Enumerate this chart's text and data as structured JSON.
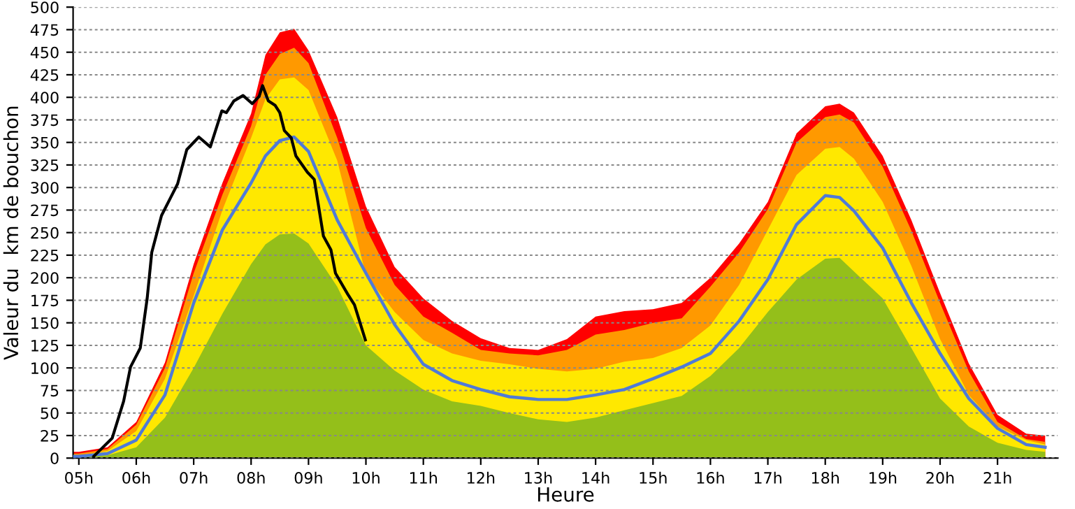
{
  "chart_data": {
    "type": "area",
    "xlabel": "Heure",
    "ylabel": "Valeur du  km de bouchon",
    "x": [
      4.9,
      5,
      5.5,
      6,
      6.5,
      7,
      7.5,
      8,
      8.25,
      8.5,
      8.75,
      9,
      9.5,
      10,
      10.5,
      11,
      11.5,
      12,
      12.5,
      13,
      13.5,
      14,
      14.5,
      15,
      15.5,
      16,
      16.5,
      17,
      17.5,
      18,
      18.25,
      18.5,
      19,
      19.5,
      20,
      20.5,
      21,
      21.5,
      21.83
    ],
    "series": [
      {
        "color": "#ff0000",
        "values": [
          7,
          7,
          12,
          40,
          106,
          215,
          305,
          382,
          447,
          472,
          476,
          452,
          378,
          279,
          212,
          177,
          152,
          133,
          122,
          120,
          132,
          157,
          163,
          165,
          172,
          200,
          238,
          284,
          360,
          390,
          393,
          383,
          335,
          264,
          183,
          105,
          48,
          27,
          25
        ]
      },
      {
        "color": "#ff9900",
        "values": [
          5,
          5,
          10,
          37,
          100,
          205,
          292,
          368,
          425,
          448,
          455,
          438,
          355,
          255,
          192,
          157,
          139,
          120,
          116,
          114,
          120,
          137,
          142,
          150,
          155,
          190,
          228,
          276,
          350,
          378,
          381,
          372,
          323,
          252,
          172,
          96,
          40,
          21,
          18
        ]
      },
      {
        "color": "#ffe800",
        "values": [
          3,
          3,
          8,
          30,
          88,
          180,
          275,
          355,
          398,
          420,
          422,
          408,
          330,
          203,
          162,
          131,
          116,
          108,
          104,
          99,
          96,
          99,
          107,
          111,
          122,
          147,
          192,
          253,
          314,
          343,
          345,
          332,
          284,
          213,
          132,
          70,
          35,
          20,
          15
        ]
      },
      {
        "color": "#94bf1a",
        "values": [
          2,
          2,
          3,
          12,
          45,
          100,
          160,
          215,
          237,
          248,
          249,
          238,
          190,
          125,
          97,
          76,
          63,
          58,
          50,
          43,
          40,
          45,
          53,
          61,
          69,
          91,
          122,
          162,
          198,
          221,
          222,
          207,
          177,
          122,
          66,
          35,
          17,
          9,
          7
        ]
      },
      {
        "type": "line",
        "color": "#4f7ad8",
        "values": [
          2,
          2,
          5,
          20,
          70,
          172,
          253,
          305,
          335,
          352,
          356,
          340,
          264,
          205,
          148,
          104,
          86,
          76,
          68,
          65,
          65,
          70,
          76,
          88,
          101,
          116,
          152,
          198,
          259,
          291,
          289,
          274,
          233,
          172,
          116,
          66,
          33,
          15,
          12
        ]
      },
      {
        "type": "line",
        "color": "#000000",
        "x": [
          5.26,
          5.58,
          5.78,
          5.9,
          6.07,
          6.19,
          6.27,
          6.44,
          6.6,
          6.72,
          6.88,
          7.09,
          7.29,
          7.49,
          7.57,
          7.7,
          7.86,
          8.02,
          8.14,
          8.2,
          8.3,
          8.42,
          8.5,
          8.58,
          8.7,
          8.78,
          8.98,
          9.1,
          9.26,
          9.39,
          9.47,
          9.68,
          9.8,
          9.99
        ],
        "values": [
          2,
          22,
          63,
          101,
          122,
          177,
          228,
          269,
          289,
          304,
          342,
          356,
          345,
          385,
          383,
          396,
          402,
          393,
          401,
          413,
          396,
          391,
          383,
          363,
          355,
          335,
          317,
          309,
          246,
          231,
          205,
          182,
          170,
          131
        ]
      }
    ],
    "xlim": [
      4.9,
      22.05
    ],
    "ylim": [
      0,
      500
    ],
    "xticks": [
      {
        "value": 5,
        "label": "05h"
      },
      {
        "value": 6,
        "label": "06h"
      },
      {
        "value": 7,
        "label": "07h"
      },
      {
        "value": 8,
        "label": "08h"
      },
      {
        "value": 9,
        "label": "09h"
      },
      {
        "value": 10,
        "label": "10h"
      },
      {
        "value": 11,
        "label": "11h"
      },
      {
        "value": 12,
        "label": "12h"
      },
      {
        "value": 13,
        "label": "13h"
      },
      {
        "value": 14,
        "label": "14h"
      },
      {
        "value": 15,
        "label": "15h"
      },
      {
        "value": 16,
        "label": "16h"
      },
      {
        "value": 17,
        "label": "17h"
      },
      {
        "value": 18,
        "label": "18h"
      },
      {
        "value": 19,
        "label": "19h"
      },
      {
        "value": 20,
        "label": "20h"
      },
      {
        "value": 21,
        "label": "21h"
      }
    ],
    "yticks": [
      0,
      25,
      50,
      75,
      100,
      125,
      150,
      175,
      200,
      225,
      250,
      275,
      300,
      325,
      350,
      375,
      400,
      425,
      450,
      475,
      500
    ],
    "grid": "y",
    "line_style": "solid",
    "marker": "none"
  }
}
